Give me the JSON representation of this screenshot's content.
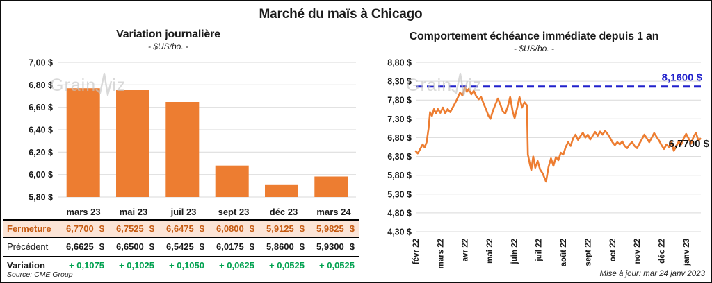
{
  "page": {
    "title": "Marché du maïs à Chicago",
    "watermark": "GrainWiz",
    "watermark_left": "Grain",
    "watermark_right": "iz",
    "source": "Source: CME Group",
    "updated": "Mise à jour: mar 24 janv 2023"
  },
  "colors": {
    "orange": "#ED7D31",
    "fermeture_text": "#C55A11",
    "fermeture_bg": "#FCE4D6",
    "green": "#00A14F",
    "blue": "#2121CC",
    "grid": "#D9D9D9",
    "text": "#1a1a1a"
  },
  "chart_data": [
    {
      "type": "bar",
      "title": "Variation journalière",
      "subtitle": "- $US/bo. -",
      "categories": [
        "mars 23",
        "mai 23",
        "juil 23",
        "sept 23",
        "déc 23",
        "mars 24"
      ],
      "values": [
        6.77,
        6.7525,
        6.6475,
        6.08,
        5.9125,
        5.9825
      ],
      "ylim": [
        5.8,
        7.0
      ],
      "ytick_values": [
        7.0,
        6.8,
        6.6,
        6.4,
        6.2,
        6.0,
        5.8
      ],
      "ytick_labels": [
        "7,00 $",
        "6,80 $",
        "6,60 $",
        "6,40 $",
        "6,20 $",
        "6,00 $",
        "5,80 $"
      ],
      "bar_color": "#ED7D31",
      "grid": true,
      "legend": "none"
    },
    {
      "type": "line",
      "title": "Comportement échéance immédiate depuis 1 an",
      "subtitle": "- $US/bo. -",
      "x_labels": [
        "févr 22",
        "mars 22",
        "avr 22",
        "mai 22",
        "juin 22",
        "juil 22",
        "août 22",
        "sept 22",
        "oct 22",
        "nov 22",
        "déc 22",
        "janv 23"
      ],
      "ylim": [
        4.3,
        8.8
      ],
      "ytick_values": [
        8.8,
        8.3,
        7.8,
        7.3,
        6.8,
        6.3,
        5.8,
        5.3,
        4.8,
        4.3
      ],
      "ytick_labels": [
        "8,80 $",
        "8,30 $",
        "7,80 $",
        "7,30 $",
        "6,80 $",
        "6,30 $",
        "5,80 $",
        "5,30 $",
        "4,80 $",
        "4,30 $"
      ],
      "reference_line": {
        "value": 8.16,
        "label": "8,1600 $",
        "color": "#2121CC",
        "style": "dashed"
      },
      "last_value_label": "6,7700 $",
      "grid": true,
      "legend": "none",
      "series": [
        {
          "name": "échéance immédiate",
          "color": "#ED7D31",
          "points": [
            [
              0,
              6.44
            ],
            [
              0.08,
              6.38
            ],
            [
              0.18,
              6.5
            ],
            [
              0.28,
              6.62
            ],
            [
              0.36,
              6.54
            ],
            [
              0.44,
              6.68
            ],
            [
              0.52,
              7.05
            ],
            [
              0.58,
              7.48
            ],
            [
              0.66,
              7.38
            ],
            [
              0.74,
              7.56
            ],
            [
              0.82,
              7.44
            ],
            [
              0.9,
              7.56
            ],
            [
              1.0,
              7.46
            ],
            [
              1.1,
              7.6
            ],
            [
              1.2,
              7.45
            ],
            [
              1.3,
              7.56
            ],
            [
              1.4,
              7.48
            ],
            [
              1.5,
              7.6
            ],
            [
              1.6,
              7.72
            ],
            [
              1.7,
              7.85
            ],
            [
              1.8,
              8.0
            ],
            [
              1.9,
              7.92
            ],
            [
              2.0,
              8.14
            ],
            [
              2.08,
              8.02
            ],
            [
              2.16,
              8.1
            ],
            [
              2.26,
              7.95
            ],
            [
              2.36,
              8.05
            ],
            [
              2.46,
              7.9
            ],
            [
              2.56,
              7.82
            ],
            [
              2.66,
              7.88
            ],
            [
              2.76,
              7.7
            ],
            [
              2.86,
              7.55
            ],
            [
              2.96,
              7.38
            ],
            [
              3.04,
              7.3
            ],
            [
              3.14,
              7.52
            ],
            [
              3.24,
              7.68
            ],
            [
              3.34,
              7.84
            ],
            [
              3.44,
              7.68
            ],
            [
              3.54,
              7.5
            ],
            [
              3.64,
              7.44
            ],
            [
              3.74,
              7.62
            ],
            [
              3.84,
              7.88
            ],
            [
              3.94,
              7.5
            ],
            [
              4.02,
              7.32
            ],
            [
              4.12,
              7.58
            ],
            [
              4.22,
              7.88
            ],
            [
              4.32,
              7.6
            ],
            [
              4.42,
              7.74
            ],
            [
              4.52,
              7.66
            ],
            [
              4.56,
              6.35
            ],
            [
              4.64,
              6.1
            ],
            [
              4.7,
              5.94
            ],
            [
              4.78,
              6.3
            ],
            [
              4.86,
              6.0
            ],
            [
              4.96,
              6.18
            ],
            [
              5.06,
              5.95
            ],
            [
              5.16,
              5.85
            ],
            [
              5.3,
              5.63
            ],
            [
              5.4,
              6.02
            ],
            [
              5.5,
              6.25
            ],
            [
              5.6,
              6.05
            ],
            [
              5.7,
              6.28
            ],
            [
              5.8,
              6.2
            ],
            [
              5.9,
              6.4
            ],
            [
              6.0,
              6.35
            ],
            [
              6.1,
              6.55
            ],
            [
              6.2,
              6.68
            ],
            [
              6.3,
              6.58
            ],
            [
              6.4,
              6.78
            ],
            [
              6.5,
              6.88
            ],
            [
              6.6,
              6.74
            ],
            [
              6.7,
              6.84
            ],
            [
              6.8,
              6.93
            ],
            [
              6.9,
              6.8
            ],
            [
              7.0,
              6.88
            ],
            [
              7.1,
              6.75
            ],
            [
              7.2,
              6.85
            ],
            [
              7.3,
              6.95
            ],
            [
              7.4,
              6.85
            ],
            [
              7.5,
              6.96
            ],
            [
              7.6,
              6.88
            ],
            [
              7.7,
              6.98
            ],
            [
              7.8,
              6.9
            ],
            [
              7.9,
              6.8
            ],
            [
              8.0,
              6.68
            ],
            [
              8.1,
              6.6
            ],
            [
              8.2,
              6.68
            ],
            [
              8.3,
              6.62
            ],
            [
              8.4,
              6.7
            ],
            [
              8.5,
              6.58
            ],
            [
              8.6,
              6.52
            ],
            [
              8.7,
              6.62
            ],
            [
              8.8,
              6.68
            ],
            [
              8.9,
              6.58
            ],
            [
              9.0,
              6.52
            ],
            [
              9.1,
              6.64
            ],
            [
              9.2,
              6.76
            ],
            [
              9.3,
              6.88
            ],
            [
              9.4,
              6.78
            ],
            [
              9.5,
              6.68
            ],
            [
              9.6,
              6.8
            ],
            [
              9.7,
              6.92
            ],
            [
              9.8,
              6.82
            ],
            [
              9.9,
              6.72
            ],
            [
              10.0,
              6.6
            ],
            [
              10.1,
              6.5
            ],
            [
              10.2,
              6.62
            ],
            [
              10.3,
              6.55
            ],
            [
              10.4,
              6.68
            ],
            [
              10.5,
              6.45
            ],
            [
              10.6,
              6.58
            ],
            [
              10.7,
              6.7
            ],
            [
              10.8,
              6.62
            ],
            [
              10.9,
              6.78
            ],
            [
              11.0,
              6.9
            ],
            [
              11.1,
              6.78
            ],
            [
              11.2,
              6.64
            ],
            [
              11.3,
              6.82
            ],
            [
              11.4,
              6.93
            ],
            [
              11.5,
              6.72
            ],
            [
              11.58,
              6.77
            ]
          ]
        }
      ]
    }
  ],
  "table": {
    "columns": [
      "mars 23",
      "mai 23",
      "juil 23",
      "sept 23",
      "déc 23",
      "mars 24"
    ],
    "rows": [
      {
        "key": "fermeture",
        "label": "Fermeture",
        "unit": "$",
        "values": [
          "6,7700",
          "6,7525",
          "6,6475",
          "6,0800",
          "5,9125",
          "5,9825"
        ]
      },
      {
        "key": "precedent",
        "label": "Précédent",
        "unit": "$",
        "values": [
          "6,6625",
          "6,6500",
          "6,5425",
          "6,0175",
          "5,8600",
          "5,9300"
        ]
      },
      {
        "key": "variation",
        "label": "Variation",
        "unit": "",
        "values": [
          "+ 0,1075",
          "+ 0,1025",
          "+ 0,1050",
          "+ 0,0625",
          "+ 0,0525",
          "+ 0,0525"
        ]
      }
    ]
  }
}
